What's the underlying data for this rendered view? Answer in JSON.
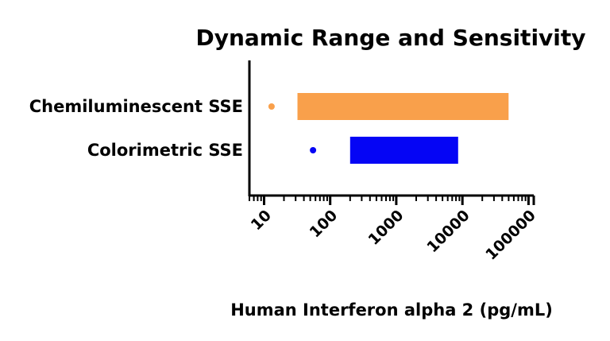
{
  "chart_data": {
    "type": "bar",
    "title": "Dynamic Range and Sensitivity",
    "xlabel": "Human Interferon alpha 2 (pg/mL)",
    "ylabel": "",
    "x_scale": "log",
    "xlim": [
      6,
      120000
    ],
    "x_ticks": [
      10,
      100,
      1000,
      10000,
      100000
    ],
    "x_tick_labels": [
      "10",
      "100",
      "1000",
      "10000",
      "100000"
    ],
    "grid": false,
    "categories": [
      "Chemiluminescent SSE",
      "Colorimetric SSE"
    ],
    "series": [
      {
        "category": "Chemiluminescent SSE",
        "range_start": 32,
        "range_end": 50000,
        "sensitivity": 13,
        "color": "#F9A04B"
      },
      {
        "category": "Colorimetric SSE",
        "range_start": 200,
        "range_end": 8600,
        "sensitivity": 55,
        "color": "#0505F5"
      }
    ]
  }
}
